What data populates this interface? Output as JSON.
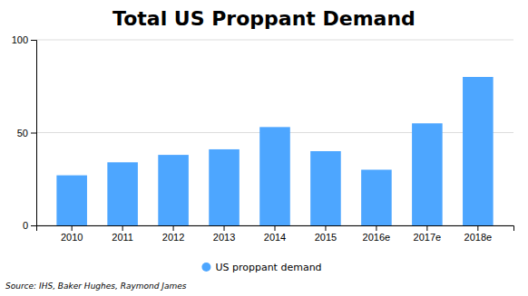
{
  "chart_data": {
    "type": "bar",
    "title": "Total US Proppant Demand",
    "categories": [
      "2010",
      "2011",
      "2012",
      "2013",
      "2014",
      "2015",
      "2016e",
      "2017e",
      "2018e"
    ],
    "series": [
      {
        "name": "US proppant demand",
        "color": "#4da6ff",
        "values": [
          27,
          34,
          38,
          41,
          53,
          40,
          30,
          55,
          80
        ]
      }
    ],
    "ylim": [
      0,
      100
    ],
    "yticks": [
      0,
      50,
      100
    ],
    "grid": true,
    "legend": "bottom",
    "annotations": [
      "Source: IHS, Baker Hughes, Raymond James"
    ]
  }
}
